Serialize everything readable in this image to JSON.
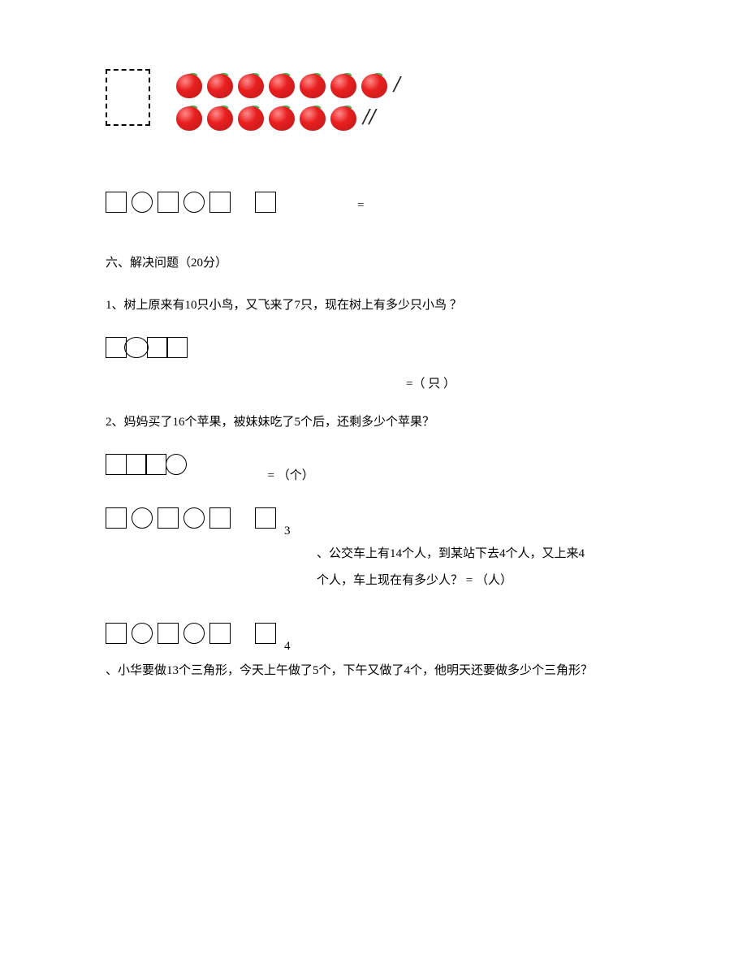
{
  "apple_section": {
    "row1_count": 7,
    "row1_slashes": "/",
    "row2_count": 6,
    "row2_slashes": "//"
  },
  "eq1": {
    "pattern": "□○□○□  □",
    "equals": "="
  },
  "section6": {
    "title": "六、解决问题（20分）",
    "q1": {
      "text": "1、树上原来有10只小鸟，又飞来了7只，现在树上有多少只小鸟 ？",
      "unit": "=（ 只 ）"
    },
    "q2": {
      "text": "2、妈妈买了16个苹果，被妹妹吃了5个后，还剩多少个苹果？",
      "unit": "= （个）"
    },
    "q3": {
      "num": "3",
      "line1": "、公交车上有14个人，到某站下去4个人，又上来4",
      "line2": "个人，车上现在有多少人？  = （人）"
    },
    "q4": {
      "num": "4",
      "text": "、小华要做13个三角形，今天上午做了5个，下午又做了4个，他明天还要做多少个三角形？"
    }
  }
}
